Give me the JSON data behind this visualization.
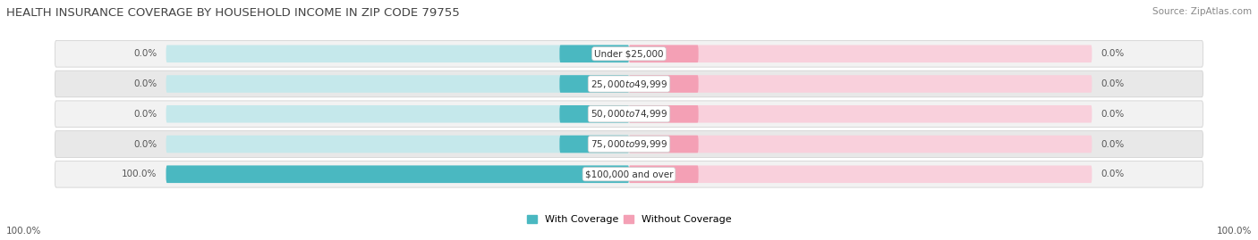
{
  "title": "HEALTH INSURANCE COVERAGE BY HOUSEHOLD INCOME IN ZIP CODE 79755",
  "source": "Source: ZipAtlas.com",
  "categories": [
    "Under $25,000",
    "$25,000 to $49,999",
    "$50,000 to $74,999",
    "$75,000 to $99,999",
    "$100,000 and over"
  ],
  "with_coverage": [
    0.0,
    0.0,
    0.0,
    0.0,
    100.0
  ],
  "without_coverage": [
    0.0,
    0.0,
    0.0,
    0.0,
    0.0
  ],
  "color_with": "#4ab8c1",
  "color_without": "#f4a0b5",
  "bar_bg_left": "#c5e8eb",
  "bar_bg_right": "#f9d0dc",
  "row_bg_even": "#f2f2f2",
  "row_bg_odd": "#e8e8e8",
  "title_fontsize": 9.5,
  "source_fontsize": 7.5,
  "label_fontsize": 7.5,
  "legend_fontsize": 8,
  "bottom_left_label": "100.0%",
  "bottom_right_label": "100.0%"
}
